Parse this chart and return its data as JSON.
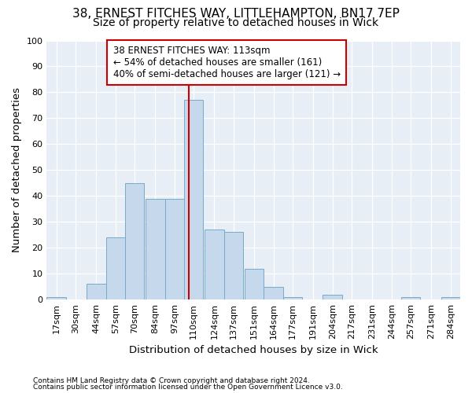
{
  "title1": "38, ERNEST FITCHES WAY, LITTLEHAMPTON, BN17 7EP",
  "title2": "Size of property relative to detached houses in Wick",
  "xlabel": "Distribution of detached houses by size in Wick",
  "ylabel": "Number of detached properties",
  "footnote1": "Contains HM Land Registry data © Crown copyright and database right 2024.",
  "footnote2": "Contains public sector information licensed under the Open Government Licence v3.0.",
  "annotation_line1": "38 ERNEST FITCHES WAY: 113sqm",
  "annotation_line2": "← 54% of detached houses are smaller (161)",
  "annotation_line3": "40% of semi-detached houses are larger (121) →",
  "bar_left_edges": [
    17,
    30,
    44,
    57,
    70,
    84,
    97,
    110,
    124,
    137,
    151,
    164,
    177,
    191,
    204,
    217,
    231,
    244,
    257,
    271,
    284
  ],
  "bar_heights": [
    1,
    0,
    6,
    24,
    45,
    39,
    39,
    77,
    27,
    26,
    12,
    5,
    1,
    0,
    2,
    0,
    0,
    0,
    1,
    0,
    1
  ],
  "bin_width": 13,
  "bar_color": "#c6d9ec",
  "bar_edge_color": "#7aaac8",
  "vline_color": "#cc0000",
  "vline_x": 113,
  "ylim": [
    0,
    100
  ],
  "yticks": [
    0,
    10,
    20,
    30,
    40,
    50,
    60,
    70,
    80,
    90,
    100
  ],
  "bg_color": "#e8eef5",
  "grid_color": "#ffffff",
  "fig_bg_color": "#ffffff",
  "annotation_box_color": "#ffffff",
  "annotation_box_edge": "#cc0000",
  "title1_fontsize": 11,
  "title2_fontsize": 10,
  "tick_label_fontsize": 8,
  "axis_label_fontsize": 9.5,
  "annotation_fontsize": 8.5,
  "footnote_fontsize": 6.5
}
